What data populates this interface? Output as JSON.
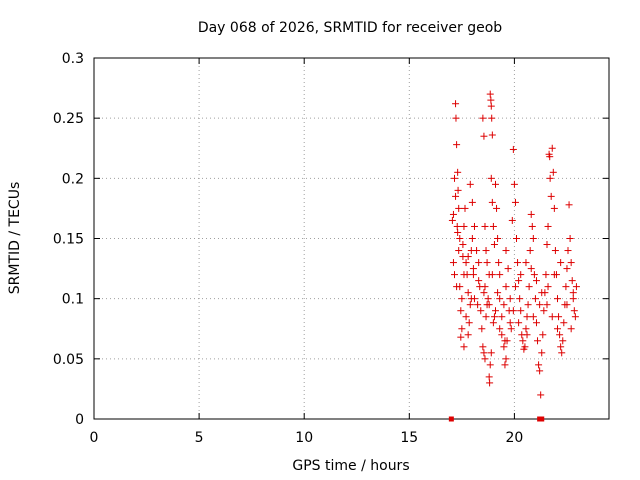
{
  "chart_data": {
    "type": "scatter",
    "title": "Day 068 of 2026, SRMTID for receiver geob",
    "xlabel": "GPS time / hours",
    "ylabel": "SRMTID / TECUs",
    "xlim": [
      0,
      24.5
    ],
    "ylim": [
      0,
      0.3
    ],
    "xticks": [
      0,
      5,
      10,
      15,
      20
    ],
    "xtick_labels": [
      "0",
      "5",
      "10",
      "15",
      "20"
    ],
    "yticks": [
      0,
      0.05,
      0.1,
      0.15,
      0.2,
      0.25,
      0.3
    ],
    "ytick_labels": [
      "0",
      "0.05",
      "0.1",
      "0.15",
      "0.2",
      "0.25",
      "0.3"
    ],
    "grid": true,
    "legend": "none",
    "color": "#dd0000",
    "marker": "plus",
    "series": [
      {
        "name": "SRMTID",
        "points": [
          [
            17.05,
            0.165
          ],
          [
            17.1,
            0.17
          ],
          [
            17.15,
            0.2
          ],
          [
            17.2,
            0.262
          ],
          [
            17.22,
            0.25
          ],
          [
            17.25,
            0.228
          ],
          [
            17.3,
            0.205
          ],
          [
            17.32,
            0.19
          ],
          [
            17.35,
            0.175
          ],
          [
            17.4,
            0.15
          ],
          [
            17.1,
            0.13
          ],
          [
            17.15,
            0.12
          ],
          [
            17.2,
            0.185
          ],
          [
            17.28,
            0.16
          ],
          [
            17.35,
            0.14
          ],
          [
            17.4,
            0.11
          ],
          [
            17.45,
            0.09
          ],
          [
            17.5,
            0.1
          ],
          [
            17.55,
            0.135
          ],
          [
            17.6,
            0.16
          ],
          [
            17.65,
            0.175
          ],
          [
            17.7,
            0.13
          ],
          [
            17.75,
            0.12
          ],
          [
            17.8,
            0.105
          ],
          [
            17.85,
            0.08
          ],
          [
            17.9,
            0.095
          ],
          [
            17.95,
            0.14
          ],
          [
            18.0,
            0.15
          ],
          [
            18.05,
            0.12
          ],
          [
            18.1,
            0.1
          ],
          [
            17.45,
            0.068
          ],
          [
            17.5,
            0.075
          ],
          [
            17.6,
            0.06
          ],
          [
            17.7,
            0.085
          ],
          [
            17.8,
            0.07
          ],
          [
            17.9,
            0.195
          ],
          [
            18.0,
            0.18
          ],
          [
            18.1,
            0.16
          ],
          [
            18.2,
            0.14
          ],
          [
            18.3,
            0.13
          ],
          [
            18.35,
            0.11
          ],
          [
            18.4,
            0.09
          ],
          [
            18.45,
            0.075
          ],
          [
            18.5,
            0.06
          ],
          [
            18.55,
            0.055
          ],
          [
            18.6,
            0.05
          ],
          [
            18.65,
            0.085
          ],
          [
            18.7,
            0.095
          ],
          [
            18.75,
            0.1
          ],
          [
            18.8,
            0.12
          ],
          [
            18.5,
            0.25
          ],
          [
            18.55,
            0.235
          ],
          [
            18.6,
            0.16
          ],
          [
            18.65,
            0.14
          ],
          [
            18.7,
            0.13
          ],
          [
            18.85,
            0.27
          ],
          [
            18.88,
            0.265
          ],
          [
            18.9,
            0.26
          ],
          [
            18.92,
            0.25
          ],
          [
            18.95,
            0.236
          ],
          [
            18.9,
            0.2
          ],
          [
            18.95,
            0.18
          ],
          [
            19.0,
            0.16
          ],
          [
            19.05,
            0.145
          ],
          [
            19.1,
            0.195
          ],
          [
            19.15,
            0.175
          ],
          [
            19.2,
            0.15
          ],
          [
            18.8,
            0.035
          ],
          [
            18.82,
            0.03
          ],
          [
            18.85,
            0.045
          ],
          [
            18.9,
            0.055
          ],
          [
            19.0,
            0.08
          ],
          [
            19.1,
            0.09
          ],
          [
            19.2,
            0.105
          ],
          [
            19.3,
            0.12
          ],
          [
            19.4,
            0.07
          ],
          [
            19.5,
            0.06
          ],
          [
            19.55,
            0.045
          ],
          [
            19.6,
            0.05
          ],
          [
            19.65,
            0.065
          ],
          [
            19.3,
            0.1
          ],
          [
            19.4,
            0.085
          ],
          [
            19.5,
            0.095
          ],
          [
            19.6,
            0.11
          ],
          [
            19.7,
            0.125
          ],
          [
            19.75,
            0.09
          ],
          [
            19.8,
            0.08
          ],
          [
            19.85,
            0.075
          ],
          [
            19.9,
            0.165
          ],
          [
            19.95,
            0.224
          ],
          [
            20.0,
            0.195
          ],
          [
            20.05,
            0.18
          ],
          [
            20.1,
            0.15
          ],
          [
            20.15,
            0.13
          ],
          [
            20.2,
            0.115
          ],
          [
            20.25,
            0.1
          ],
          [
            20.3,
            0.09
          ],
          [
            20.35,
            0.07
          ],
          [
            20.4,
            0.065
          ],
          [
            20.45,
            0.058
          ],
          [
            20.5,
            0.06
          ],
          [
            20.55,
            0.075
          ],
          [
            20.6,
            0.085
          ],
          [
            20.65,
            0.095
          ],
          [
            20.7,
            0.11
          ],
          [
            20.75,
            0.14
          ],
          [
            20.8,
            0.17
          ],
          [
            20.85,
            0.16
          ],
          [
            20.9,
            0.15
          ],
          [
            20.95,
            0.12
          ],
          [
            21.0,
            0.1
          ],
          [
            21.05,
            0.08
          ],
          [
            21.1,
            0.065
          ],
          [
            21.15,
            0.045
          ],
          [
            21.2,
            0.04
          ],
          [
            21.25,
            0.02
          ],
          [
            21.3,
            0.055
          ],
          [
            21.35,
            0.07
          ],
          [
            21.4,
            0.09
          ],
          [
            21.45,
            0.105
          ],
          [
            21.5,
            0.12
          ],
          [
            21.55,
            0.145
          ],
          [
            21.6,
            0.16
          ],
          [
            21.65,
            0.22
          ],
          [
            21.68,
            0.218
          ],
          [
            21.7,
            0.2
          ],
          [
            21.75,
            0.185
          ],
          [
            21.8,
            0.225
          ],
          [
            21.85,
            0.205
          ],
          [
            21.9,
            0.175
          ],
          [
            21.95,
            0.14
          ],
          [
            22.0,
            0.12
          ],
          [
            22.05,
            0.1
          ],
          [
            22.1,
            0.085
          ],
          [
            22.15,
            0.07
          ],
          [
            22.2,
            0.06
          ],
          [
            22.25,
            0.055
          ],
          [
            22.3,
            0.065
          ],
          [
            22.35,
            0.08
          ],
          [
            22.4,
            0.095
          ],
          [
            22.45,
            0.11
          ],
          [
            22.5,
            0.125
          ],
          [
            22.55,
            0.14
          ],
          [
            22.6,
            0.178
          ],
          [
            22.65,
            0.15
          ],
          [
            22.7,
            0.13
          ],
          [
            22.75,
            0.115
          ],
          [
            22.8,
            0.1
          ],
          [
            22.85,
            0.09
          ],
          [
            22.9,
            0.085
          ],
          [
            17.3,
            0.155
          ],
          [
            17.55,
            0.145
          ],
          [
            17.8,
            0.135
          ],
          [
            18.05,
            0.125
          ],
          [
            18.3,
            0.115
          ],
          [
            18.55,
            0.105
          ],
          [
            18.8,
            0.095
          ],
          [
            19.05,
            0.085
          ],
          [
            19.3,
            0.075
          ],
          [
            19.55,
            0.065
          ],
          [
            19.8,
            0.1
          ],
          [
            20.05,
            0.11
          ],
          [
            20.3,
            0.12
          ],
          [
            20.55,
            0.13
          ],
          [
            20.8,
            0.125
          ],
          [
            21.05,
            0.115
          ],
          [
            21.3,
            0.105
          ],
          [
            21.55,
            0.095
          ],
          [
            21.8,
            0.085
          ],
          [
            22.05,
            0.075
          ],
          [
            17.25,
            0.11
          ],
          [
            17.6,
            0.12
          ],
          [
            17.95,
            0.1
          ],
          [
            18.25,
            0.095
          ],
          [
            18.6,
            0.11
          ],
          [
            18.95,
            0.12
          ],
          [
            19.25,
            0.13
          ],
          [
            19.6,
            0.14
          ],
          [
            19.95,
            0.09
          ],
          [
            20.2,
            0.08
          ],
          [
            20.6,
            0.07
          ],
          [
            20.9,
            0.085
          ],
          [
            21.2,
            0.095
          ],
          [
            21.6,
            0.11
          ],
          [
            21.9,
            0.12
          ],
          [
            22.2,
            0.13
          ],
          [
            22.5,
            0.095
          ],
          [
            22.8,
            0.105
          ],
          [
            22.95,
            0.11
          ],
          [
            22.7,
            0.075
          ]
        ]
      }
    ],
    "baseline_marks_x": [
      17.0,
      21.2,
      21.3
    ]
  }
}
